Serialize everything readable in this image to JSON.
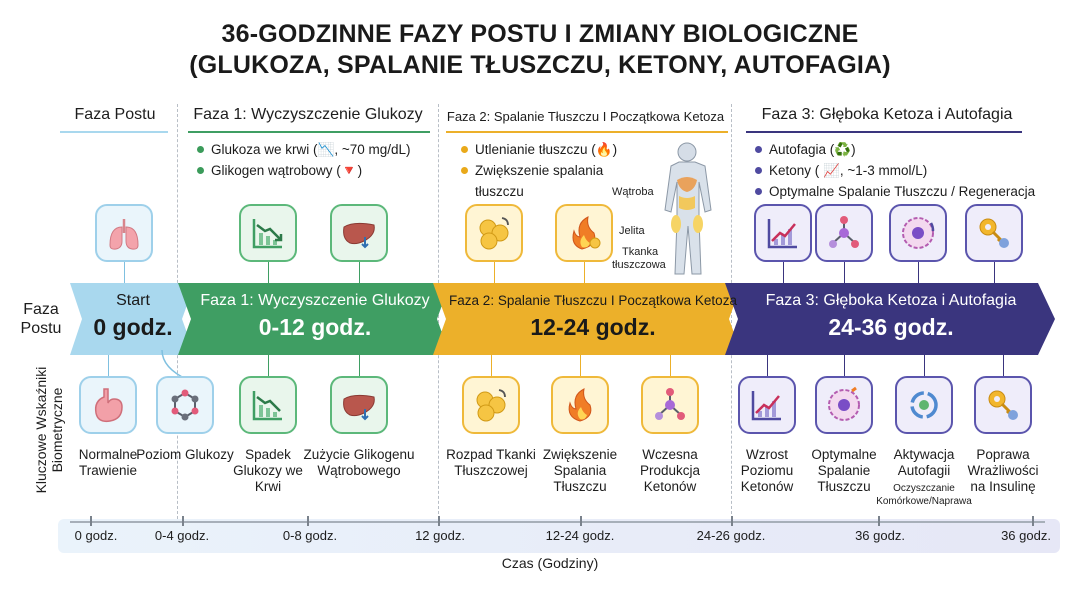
{
  "title": {
    "line1": "36-GODZINNE FAZY POSTU I ZMIANY BIOLOGICZNE",
    "line2": "(GLUKOZA, SPALANIE TŁUSZCZU, KETONY, AUTOFAGIA)"
  },
  "phases": [
    {
      "header": "Faza Postu",
      "band_name": "Start",
      "band_hours": "0 godz.",
      "color": "#a9d8ee"
    },
    {
      "header": "Faza 1: Wyczyszczenie Glukozy",
      "band_name": "Faza 1: Wyczyszczenie Glukozy",
      "band_hours": "0-12 godz.",
      "color": "#3f9e63"
    },
    {
      "header": "Faza 2: Spalanie Tłuszczu I Początkowa Ketoza",
      "band_name": "Faza 2: Spalanie Tłuszczu I Początkowa Ketoza",
      "band_hours": "12-24 godz.",
      "color": "#ecb02a"
    },
    {
      "header": "Faza 3: Głęboka Ketoza i Autofagia",
      "band_name": "Faza 3: Głęboka Ketoza i Autofagia",
      "band_hours": "24-36 godz.",
      "color": "#3a357e"
    }
  ],
  "phase1_bullets": [
    "Glukoza we krwi (📉, ~70 mg/dL)",
    "Glikogen wątrobowy (🔻)"
  ],
  "phase2_bullets": [
    "Utlenianie tłuszczu (🔥)",
    "Zwiększenie spalania tłuszczu"
  ],
  "phase3_bullets": [
    "Autofagia (♻️)",
    "Ketony ( 📈, ~1-3 mmol/L)",
    "Optymalne Spalanie Tłuszczu / Regeneracja"
  ],
  "body_labels": {
    "liver": "Wątroba",
    "gut": "Jelita",
    "fat1": "Tkanka",
    "fat2": "tłuszczowa"
  },
  "left_label": {
    "line1": "Faza",
    "line2": "Postu"
  },
  "vertical_label": {
    "line1": "Kluczowe Wskaźniki",
    "line2": "Biometryczne"
  },
  "top_icons": [
    "lungs-icon",
    "chart-down-icon",
    "liver-icon",
    "fat-cells-icon",
    "flame-fat-icon",
    "chart-up-icon",
    "molecule-icon",
    "cell-icon",
    "key-icon"
  ],
  "biomarkers": [
    {
      "label": "Normalne Trawienie",
      "icon": "stomach-icon"
    },
    {
      "label": "Poziom Glukozy",
      "icon": "molecule-icon"
    },
    {
      "label": "Spadek Glukozy we Krwi",
      "icon": "chart-down-icon"
    },
    {
      "label": "Zużycie Glikogenu Wątrobowego",
      "icon": "liver-icon"
    },
    {
      "label": "Rozpad Tkanki Tłuszczowej",
      "icon": "fat-cells-icon"
    },
    {
      "label": "Zwiększenie Spalania Tłuszczu",
      "icon": "flame-icon"
    },
    {
      "label": "Wczesna Produkcja Ketonów",
      "icon": "molecule-icon"
    },
    {
      "label": "Wzrost Poziomu Ketonów",
      "icon": "chart-up-icon"
    },
    {
      "label": "Optymalne Spalanie Tłuszczu",
      "icon": "cell-icon"
    },
    {
      "label": "Aktywacja Autofagii",
      "sub": "Oczyszczanie Komórkowe/Naprawa",
      "icon": "recycle-icon"
    },
    {
      "label": "Poprawa Wrażliwości na Insulinę",
      "icon": "key-icon"
    }
  ],
  "axis": {
    "ticks": [
      "0 godz.",
      "0-4 godz.",
      "0-8 godz.",
      "12 godz.",
      "12-24 godz.",
      "24-26 godz.",
      "36 godz.",
      "36 godz."
    ],
    "title": "Czas (Godziny)"
  }
}
